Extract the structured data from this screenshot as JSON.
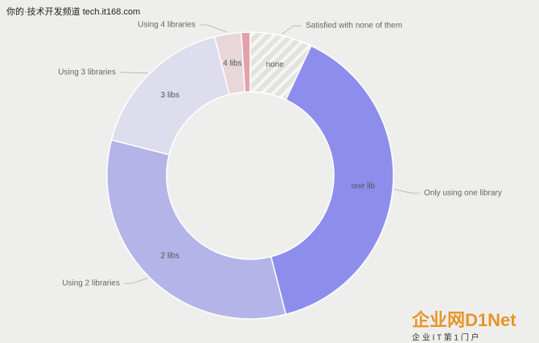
{
  "chart_data": {
    "type": "donut",
    "categories": [
      "none",
      "one lib",
      "2 libs",
      "3 libs",
      "4 libs",
      null
    ],
    "descriptions": [
      "Satisfied with none of them",
      "Only using one library",
      "Using 2 libraries",
      "Using 3 libraries",
      "Using 4 libraries",
      null
    ],
    "values": [
      7,
      39,
      33,
      17,
      3,
      1
    ],
    "colors": [
      "hatch",
      "#8d8eec",
      "#b4b4e9",
      "#dddded",
      "#e8d6d8",
      "#e3a1ab"
    ]
  },
  "watermark": {
    "top": "你的·技术开发频道 tech.it168.com",
    "logo": "企业网D1Net",
    "tagline": "企 业 I T 第 1 门 户"
  }
}
